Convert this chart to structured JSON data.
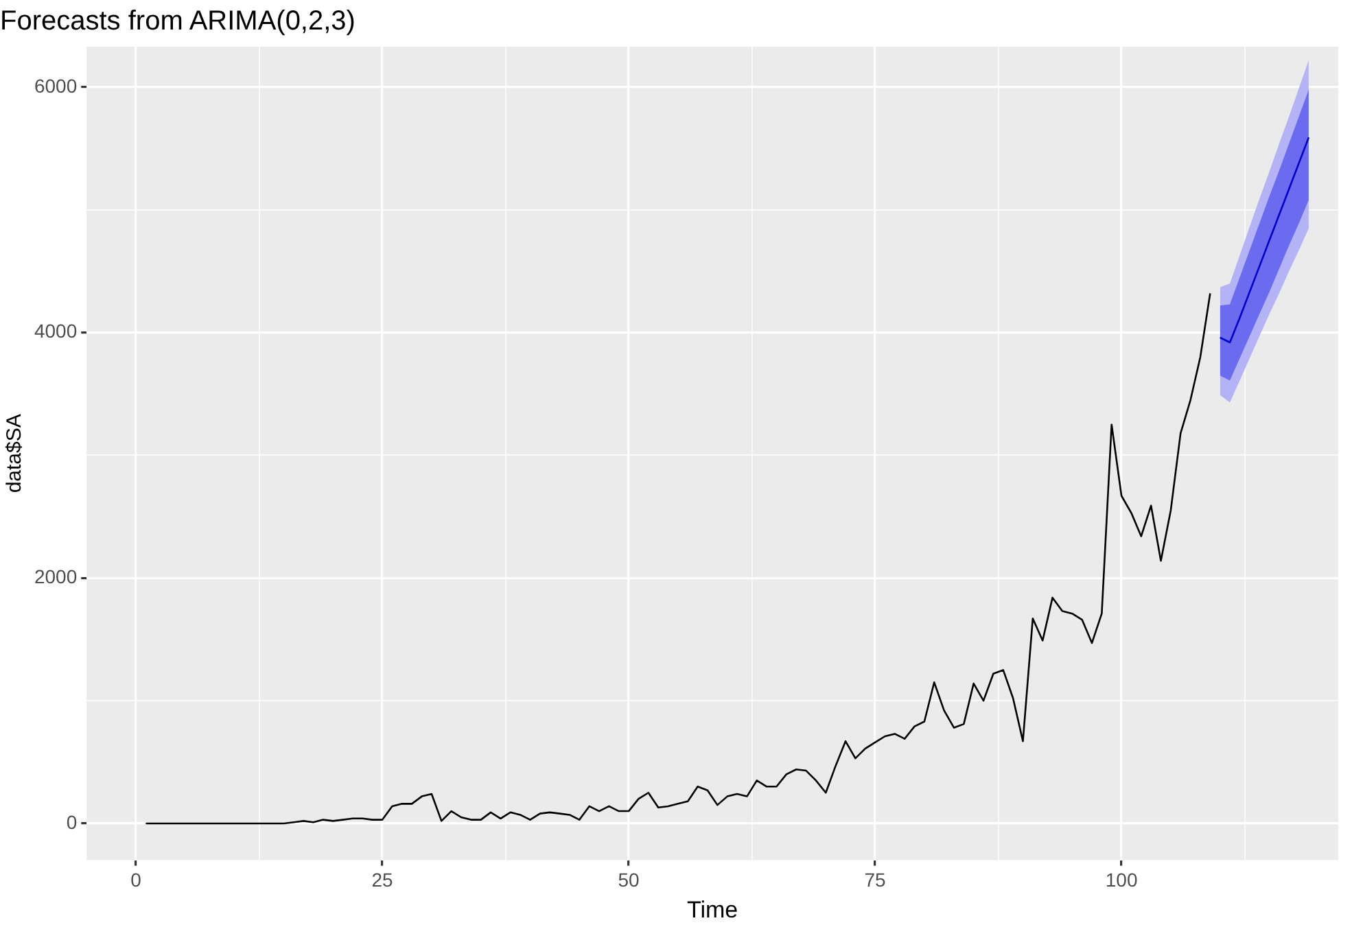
{
  "chart_data": {
    "type": "line",
    "title": "Forecasts from ARIMA(0,2,3)",
    "xlabel": "Time",
    "ylabel": "data$SA",
    "xlim": [
      -5,
      122
    ],
    "xticks": [
      0,
      {
        "value": 12.5,
        "label": null
      },
      25,
      {
        "value": 37.5,
        "label": null
      },
      50,
      {
        "value": 62.5,
        "label": null
      },
      75,
      {
        "value": 87.5,
        "label": null
      },
      100,
      {
        "value": 112.5,
        "label": null
      }
    ],
    "ylim": [
      -300,
      6330
    ],
    "yticks": [
      0,
      {
        "value": 1000,
        "label": null
      },
      2000,
      {
        "value": 3000,
        "label": null
      },
      4000,
      {
        "value": 5000,
        "label": null
      },
      6000
    ],
    "grid": true,
    "legend": false,
    "marker": "none",
    "line_style": "solid",
    "series": [
      {
        "color": "#000000",
        "x": [
          1,
          5,
          10,
          15,
          16,
          17,
          18,
          19,
          20,
          21,
          22,
          23,
          24,
          25,
          26,
          27,
          28,
          29,
          30,
          31,
          32,
          33,
          34,
          35,
          36,
          37,
          38,
          39,
          40,
          41,
          42,
          43,
          44,
          45,
          46,
          47,
          48,
          49,
          50,
          51,
          52,
          53,
          54,
          55,
          56,
          57,
          58,
          59,
          60,
          61,
          62,
          63,
          64,
          65,
          66,
          67,
          68,
          69,
          70,
          71,
          72,
          73,
          74,
          75,
          76,
          77,
          78,
          79,
          80,
          81,
          82,
          83,
          84,
          85,
          86,
          87,
          88,
          89,
          90,
          91,
          92,
          93,
          94,
          95,
          96,
          97,
          98,
          99,
          100,
          101,
          102,
          103,
          104,
          105,
          106,
          107,
          108,
          109
        ],
        "values": [
          0,
          0,
          0,
          0,
          10,
          20,
          10,
          30,
          20,
          30,
          40,
          40,
          30,
          30,
          140,
          160,
          160,
          220,
          240,
          20,
          100,
          50,
          30,
          30,
          90,
          40,
          90,
          70,
          30,
          80,
          90,
          80,
          70,
          30,
          140,
          100,
          140,
          100,
          100,
          200,
          250,
          130,
          140,
          160,
          180,
          300,
          270,
          150,
          220,
          240,
          220,
          350,
          300,
          300,
          400,
          440,
          430,
          350,
          250,
          470,
          670,
          530,
          610,
          660,
          710,
          730,
          690,
          790,
          830,
          1150,
          920,
          780,
          810,
          1140,
          1000,
          1220,
          1250,
          1020,
          670,
          1670,
          1490,
          1840,
          1730,
          1710,
          1660,
          1470,
          1710,
          3250,
          2670,
          2530,
          2340,
          2590,
          2140,
          2550,
          3180,
          3450,
          3800,
          4320
        ]
      },
      {
        "color": "#b3b3f5",
        "x": [
          110,
          111,
          112,
          113,
          114,
          115,
          116,
          117,
          118,
          119
        ],
        "values": [
          null,
          null,
          null,
          null,
          null,
          null,
          null,
          null,
          null,
          null
        ],
        "lower": [
          3490,
          3430,
          3610,
          3790,
          3970,
          4150,
          4320,
          4500,
          4670,
          4850
        ],
        "upper": [
          4370,
          4400,
          4630,
          4860,
          5090,
          5310,
          5540,
          5760,
          5990,
          6220
        ]
      },
      {
        "color": "#6b6bf0",
        "x": [
          110,
          111,
          112,
          113,
          114,
          115,
          116,
          117,
          118,
          119
        ],
        "values": [
          null,
          null,
          null,
          null,
          null,
          null,
          null,
          null,
          null,
          null
        ],
        "lower": [
          3650,
          3610,
          3790,
          3970,
          4150,
          4330,
          4520,
          4710,
          4890,
          5080
        ],
        "upper": [
          4220,
          4230,
          4450,
          4670,
          4890,
          5110,
          5320,
          5540,
          5760,
          5980
        ]
      },
      {
        "color": "#0000cc",
        "x": [
          110,
          111,
          112,
          113,
          114,
          115,
          116,
          117,
          118,
          119
        ],
        "values": [
          3960,
          3920,
          4120,
          4330,
          4540,
          4750,
          4960,
          5170,
          5380,
          5590
        ]
      }
    ]
  }
}
